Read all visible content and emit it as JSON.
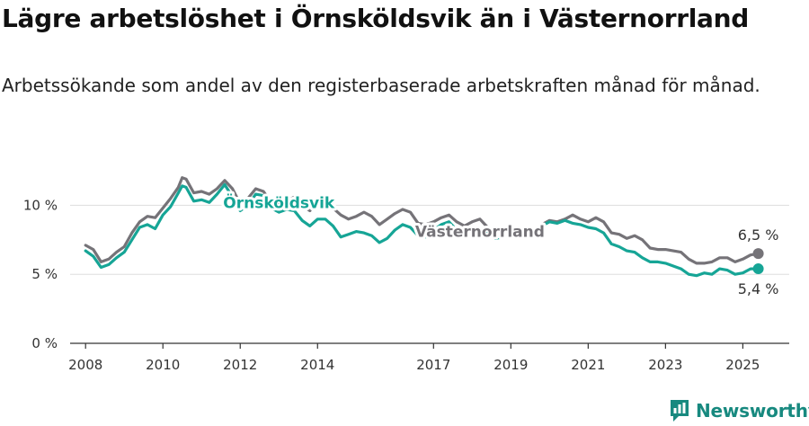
{
  "header": {
    "title": "Lägre arbetslöshet i Örnsköldsvik än i Västernorrland",
    "subtitle": "Arbetssökande som andel av den registerbaserade arbetskraften månad för månad."
  },
  "brand": {
    "name": "Newsworthy",
    "color": "#17897f",
    "icon": "newsworthy-bar-chart-icon"
  },
  "chart_data": {
    "type": "line",
    "ylim": [
      0,
      12.5
    ],
    "xlim": [
      2007.6,
      2026.2
    ],
    "yticks": [
      0,
      5,
      10
    ],
    "ytick_labels": [
      "0 %",
      "5 %",
      "10 %"
    ],
    "xticks": [
      2008,
      2010,
      2012,
      2014,
      2017,
      2019,
      2021,
      2023,
      2025
    ],
    "xtick_labels": [
      "2008",
      "2010",
      "2012",
      "2014",
      "2017",
      "2019",
      "2021",
      "2023",
      "2025"
    ],
    "grid": "horizontal",
    "series": [
      {
        "name": "Västernorrland",
        "color": "#757378",
        "end_label": "6,5 %",
        "points": [
          [
            2008.0,
            7.1
          ],
          [
            2008.2,
            6.8
          ],
          [
            2008.4,
            5.9
          ],
          [
            2008.6,
            6.1
          ],
          [
            2008.8,
            6.6
          ],
          [
            2009.0,
            7.0
          ],
          [
            2009.2,
            8.0
          ],
          [
            2009.4,
            8.8
          ],
          [
            2009.6,
            9.2
          ],
          [
            2009.8,
            9.1
          ],
          [
            2010.0,
            9.8
          ],
          [
            2010.2,
            10.5
          ],
          [
            2010.4,
            11.3
          ],
          [
            2010.5,
            12.0
          ],
          [
            2010.6,
            11.9
          ],
          [
            2010.8,
            10.9
          ],
          [
            2011.0,
            11.0
          ],
          [
            2011.2,
            10.8
          ],
          [
            2011.4,
            11.2
          ],
          [
            2011.6,
            11.8
          ],
          [
            2011.8,
            11.2
          ],
          [
            2012.0,
            10.1
          ],
          [
            2012.2,
            10.5
          ],
          [
            2012.4,
            11.2
          ],
          [
            2012.6,
            11.0
          ],
          [
            2012.8,
            10.2
          ],
          [
            2013.0,
            10.0
          ],
          [
            2013.2,
            10.3
          ],
          [
            2013.4,
            10.6
          ],
          [
            2013.6,
            10.0
          ],
          [
            2013.8,
            9.6
          ],
          [
            2014.0,
            10.2
          ],
          [
            2014.2,
            10.4
          ],
          [
            2014.4,
            9.8
          ],
          [
            2014.6,
            9.3
          ],
          [
            2014.8,
            9.0
          ],
          [
            2015.0,
            9.2
          ],
          [
            2015.2,
            9.5
          ],
          [
            2015.4,
            9.2
          ],
          [
            2015.6,
            8.6
          ],
          [
            2015.8,
            9.0
          ],
          [
            2016.0,
            9.4
          ],
          [
            2016.2,
            9.7
          ],
          [
            2016.4,
            9.5
          ],
          [
            2016.6,
            8.7
          ],
          [
            2016.8,
            8.6
          ],
          [
            2017.0,
            8.8
          ],
          [
            2017.2,
            9.1
          ],
          [
            2017.4,
            9.3
          ],
          [
            2017.6,
            8.8
          ],
          [
            2017.8,
            8.5
          ],
          [
            2018.0,
            8.8
          ],
          [
            2018.2,
            9.0
          ],
          [
            2018.4,
            8.4
          ],
          [
            2018.6,
            8.0
          ],
          [
            2018.8,
            8.1
          ],
          [
            2019.0,
            8.3
          ],
          [
            2019.2,
            8.4
          ],
          [
            2019.4,
            8.1
          ],
          [
            2019.6,
            8.2
          ],
          [
            2019.8,
            8.6
          ],
          [
            2020.0,
            8.9
          ],
          [
            2020.2,
            8.8
          ],
          [
            2020.4,
            9.0
          ],
          [
            2020.6,
            9.3
          ],
          [
            2020.8,
            9.0
          ],
          [
            2021.0,
            8.8
          ],
          [
            2021.2,
            9.1
          ],
          [
            2021.4,
            8.8
          ],
          [
            2021.6,
            8.0
          ],
          [
            2021.8,
            7.9
          ],
          [
            2022.0,
            7.6
          ],
          [
            2022.2,
            7.8
          ],
          [
            2022.4,
            7.5
          ],
          [
            2022.6,
            6.9
          ],
          [
            2022.8,
            6.8
          ],
          [
            2023.0,
            6.8
          ],
          [
            2023.2,
            6.7
          ],
          [
            2023.4,
            6.6
          ],
          [
            2023.6,
            6.1
          ],
          [
            2023.8,
            5.8
          ],
          [
            2024.0,
            5.8
          ],
          [
            2024.2,
            5.9
          ],
          [
            2024.4,
            6.2
          ],
          [
            2024.6,
            6.2
          ],
          [
            2024.8,
            5.9
          ],
          [
            2025.0,
            6.1
          ],
          [
            2025.2,
            6.4
          ],
          [
            2025.4,
            6.5
          ]
        ]
      },
      {
        "name": "Örnsköldsvik",
        "color": "#16a596",
        "end_label": "5,4 %",
        "points": [
          [
            2008.0,
            6.7
          ],
          [
            2008.2,
            6.3
          ],
          [
            2008.4,
            5.5
          ],
          [
            2008.6,
            5.7
          ],
          [
            2008.8,
            6.2
          ],
          [
            2009.0,
            6.6
          ],
          [
            2009.2,
            7.5
          ],
          [
            2009.4,
            8.4
          ],
          [
            2009.6,
            8.6
          ],
          [
            2009.8,
            8.3
          ],
          [
            2010.0,
            9.3
          ],
          [
            2010.2,
            9.9
          ],
          [
            2010.4,
            10.9
          ],
          [
            2010.5,
            11.4
          ],
          [
            2010.6,
            11.3
          ],
          [
            2010.8,
            10.3
          ],
          [
            2011.0,
            10.4
          ],
          [
            2011.2,
            10.2
          ],
          [
            2011.4,
            10.8
          ],
          [
            2011.6,
            11.5
          ],
          [
            2011.8,
            10.6
          ],
          [
            2012.0,
            9.6
          ],
          [
            2012.2,
            10.0
          ],
          [
            2012.4,
            10.8
          ],
          [
            2012.6,
            10.7
          ],
          [
            2012.8,
            9.8
          ],
          [
            2013.0,
            9.5
          ],
          [
            2013.2,
            9.7
          ],
          [
            2013.4,
            9.6
          ],
          [
            2013.6,
            8.9
          ],
          [
            2013.8,
            8.5
          ],
          [
            2014.0,
            9.0
          ],
          [
            2014.2,
            9.0
          ],
          [
            2014.4,
            8.5
          ],
          [
            2014.6,
            7.7
          ],
          [
            2014.8,
            7.9
          ],
          [
            2015.0,
            8.1
          ],
          [
            2015.2,
            8.0
          ],
          [
            2015.4,
            7.8
          ],
          [
            2015.6,
            7.3
          ],
          [
            2015.8,
            7.6
          ],
          [
            2016.0,
            8.2
          ],
          [
            2016.2,
            8.6
          ],
          [
            2016.4,
            8.4
          ],
          [
            2016.6,
            7.8
          ],
          [
            2016.8,
            7.7
          ],
          [
            2017.0,
            8.2
          ],
          [
            2017.2,
            8.6
          ],
          [
            2017.4,
            8.8
          ],
          [
            2017.6,
            8.2
          ],
          [
            2017.8,
            7.8
          ],
          [
            2018.0,
            8.1
          ],
          [
            2018.2,
            8.3
          ],
          [
            2018.4,
            7.9
          ],
          [
            2018.6,
            7.6
          ],
          [
            2018.8,
            7.7
          ],
          [
            2019.0,
            7.9
          ],
          [
            2019.2,
            8.0
          ],
          [
            2019.4,
            7.8
          ],
          [
            2019.6,
            8.1
          ],
          [
            2019.8,
            8.5
          ],
          [
            2020.0,
            8.8
          ],
          [
            2020.2,
            8.7
          ],
          [
            2020.4,
            8.9
          ],
          [
            2020.6,
            8.7
          ],
          [
            2020.8,
            8.6
          ],
          [
            2021.0,
            8.4
          ],
          [
            2021.2,
            8.3
          ],
          [
            2021.4,
            8.0
          ],
          [
            2021.6,
            7.2
          ],
          [
            2021.8,
            7.0
          ],
          [
            2022.0,
            6.7
          ],
          [
            2022.2,
            6.6
          ],
          [
            2022.4,
            6.2
          ],
          [
            2022.6,
            5.9
          ],
          [
            2022.8,
            5.9
          ],
          [
            2023.0,
            5.8
          ],
          [
            2023.2,
            5.6
          ],
          [
            2023.4,
            5.4
          ],
          [
            2023.6,
            5.0
          ],
          [
            2023.8,
            4.9
          ],
          [
            2024.0,
            5.1
          ],
          [
            2024.2,
            5.0
          ],
          [
            2024.4,
            5.4
          ],
          [
            2024.6,
            5.3
          ],
          [
            2024.8,
            5.0
          ],
          [
            2025.0,
            5.1
          ],
          [
            2025.2,
            5.4
          ],
          [
            2025.4,
            5.4
          ]
        ]
      }
    ],
    "inline_labels": [
      {
        "text": "Örnsköldsvik",
        "series": "Örnsköldsvik",
        "x": 2013.0,
        "y": 9.8
      },
      {
        "text": "Västernorrland",
        "series": "Västernorrland",
        "x": 2018.2,
        "y": 7.7
      }
    ]
  }
}
